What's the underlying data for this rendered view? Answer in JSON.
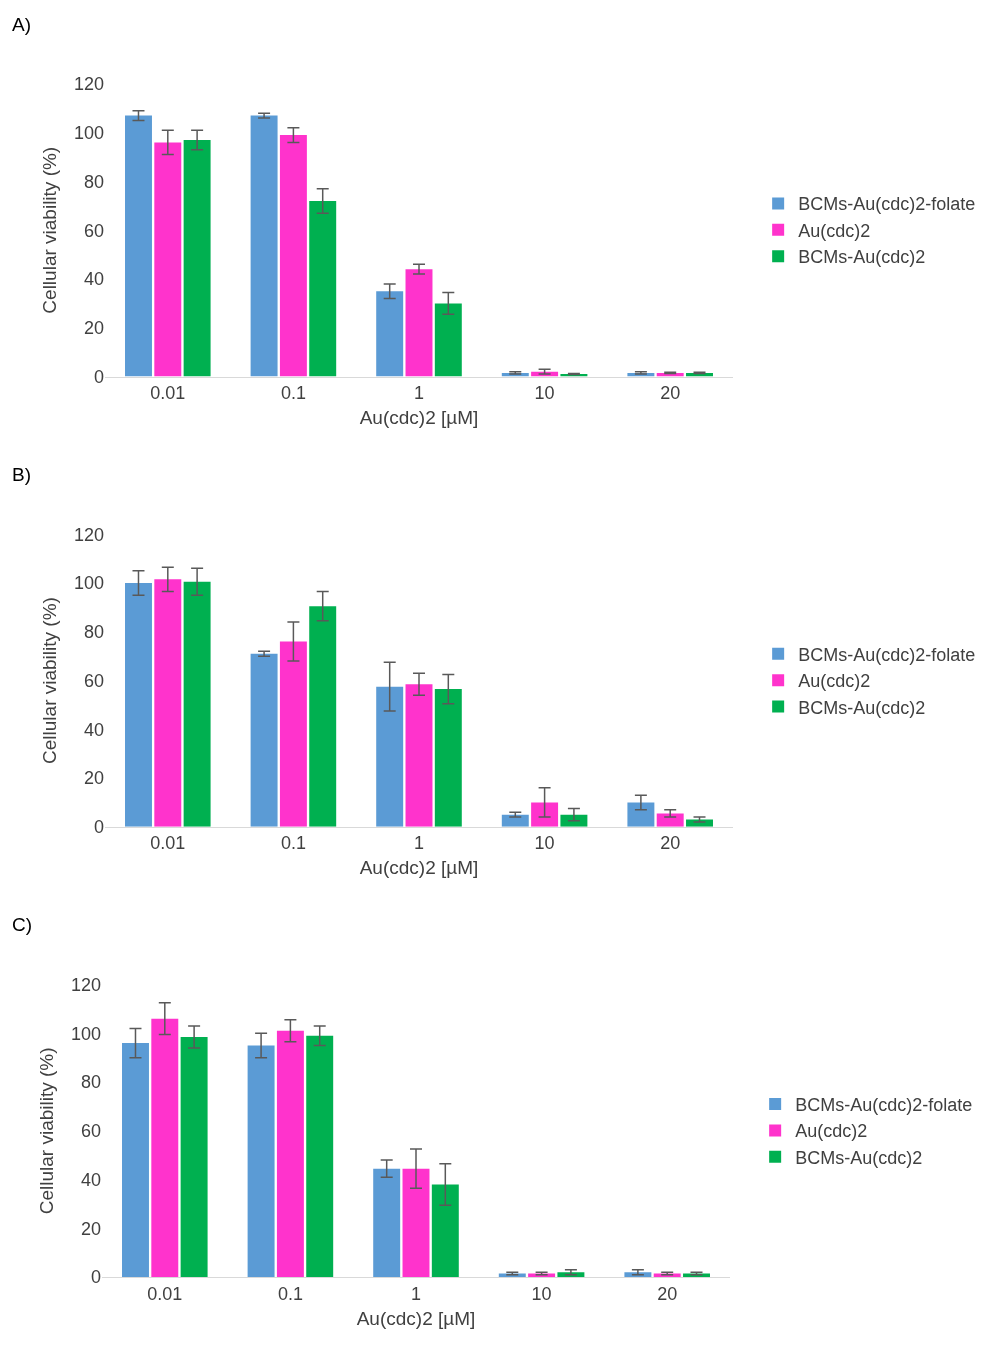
{
  "chart_data": [
    {
      "type": "bar",
      "title": "A)",
      "xlabel": "Au(cdc)2 [µM]",
      "ylabel": "Cellular viability (%)",
      "categories": [
        "0.01",
        "0.1",
        "1",
        "10",
        "20"
      ],
      "ylim": [
        0,
        120
      ],
      "yticks": [
        0,
        20,
        40,
        60,
        80,
        100,
        120
      ],
      "grid": false,
      "legend": "right",
      "series": [
        {
          "name": "BCMs-Au(cdc)2-folate",
          "color": "#5b9bd5",
          "values": [
            107,
            107,
            35,
            1.5,
            1.5
          ],
          "errors": [
            2,
            1,
            3,
            0.5,
            0.5
          ]
        },
        {
          "name": "Au(cdc)2",
          "color": "#ff33cc",
          "values": [
            96,
            99,
            44,
            2,
            1.5
          ],
          "errors": [
            5,
            3,
            2,
            1,
            0.3
          ]
        },
        {
          "name": "BCMs-Au(cdc)2",
          "color": "#00b050",
          "values": [
            97,
            72,
            30,
            1,
            1.5
          ],
          "errors": [
            4,
            5,
            4.5,
            0.2,
            0.3
          ]
        }
      ]
    },
    {
      "type": "bar",
      "title": "B)",
      "xlabel": "Au(cdc)2 [µM]",
      "ylabel": "Cellular viability (%)",
      "categories": [
        "0.01",
        "0.1",
        "1",
        "10",
        "20"
      ],
      "ylim": [
        0,
        120
      ],
      "yticks": [
        0,
        20,
        40,
        60,
        80,
        100,
        120
      ],
      "grid": false,
      "legend": "right",
      "series": [
        {
          "name": "BCMs-Au(cdc)2-folate",
          "color": "#5b9bd5",
          "values": [
            100,
            71,
            57.5,
            5,
            10
          ],
          "errors": [
            5,
            1,
            10,
            1,
            3
          ]
        },
        {
          "name": "Au(cdc)2",
          "color": "#ff33cc",
          "values": [
            101.5,
            76,
            58.5,
            10,
            5.5
          ],
          "errors": [
            5,
            8,
            4.5,
            6,
            1.5
          ]
        },
        {
          "name": "BCMs-Au(cdc)2",
          "color": "#00b050",
          "values": [
            100.5,
            90.5,
            56.5,
            5,
            3
          ],
          "errors": [
            5.5,
            6,
            6,
            2.5,
            1
          ]
        }
      ]
    },
    {
      "type": "bar",
      "title": "C)",
      "xlabel": "Au(cdc)2 [µM]",
      "ylabel": "Cellular viability (%)",
      "categories": [
        "0.01",
        "0.1",
        "1",
        "10",
        "20"
      ],
      "ylim": [
        0,
        120
      ],
      "yticks": [
        0,
        20,
        40,
        60,
        80,
        100,
        120
      ],
      "grid": false,
      "legend": "right",
      "series": [
        {
          "name": "BCMs-Au(cdc)2-folate",
          "color": "#5b9bd5",
          "values": [
            96,
            95,
            44.5,
            1.5,
            2
          ],
          "errors": [
            6,
            5,
            3.5,
            0.5,
            1
          ]
        },
        {
          "name": "Au(cdc)2",
          "color": "#ff33cc",
          "values": [
            106,
            101,
            44.5,
            1.5,
            1.5
          ],
          "errors": [
            6.5,
            4.5,
            8,
            0.5,
            0.5
          ]
        },
        {
          "name": "BCMs-Au(cdc)2",
          "color": "#00b050",
          "values": [
            98.5,
            99,
            38,
            2,
            1.5
          ],
          "errors": [
            4.5,
            4,
            8.5,
            1,
            0.5
          ]
        }
      ]
    }
  ]
}
